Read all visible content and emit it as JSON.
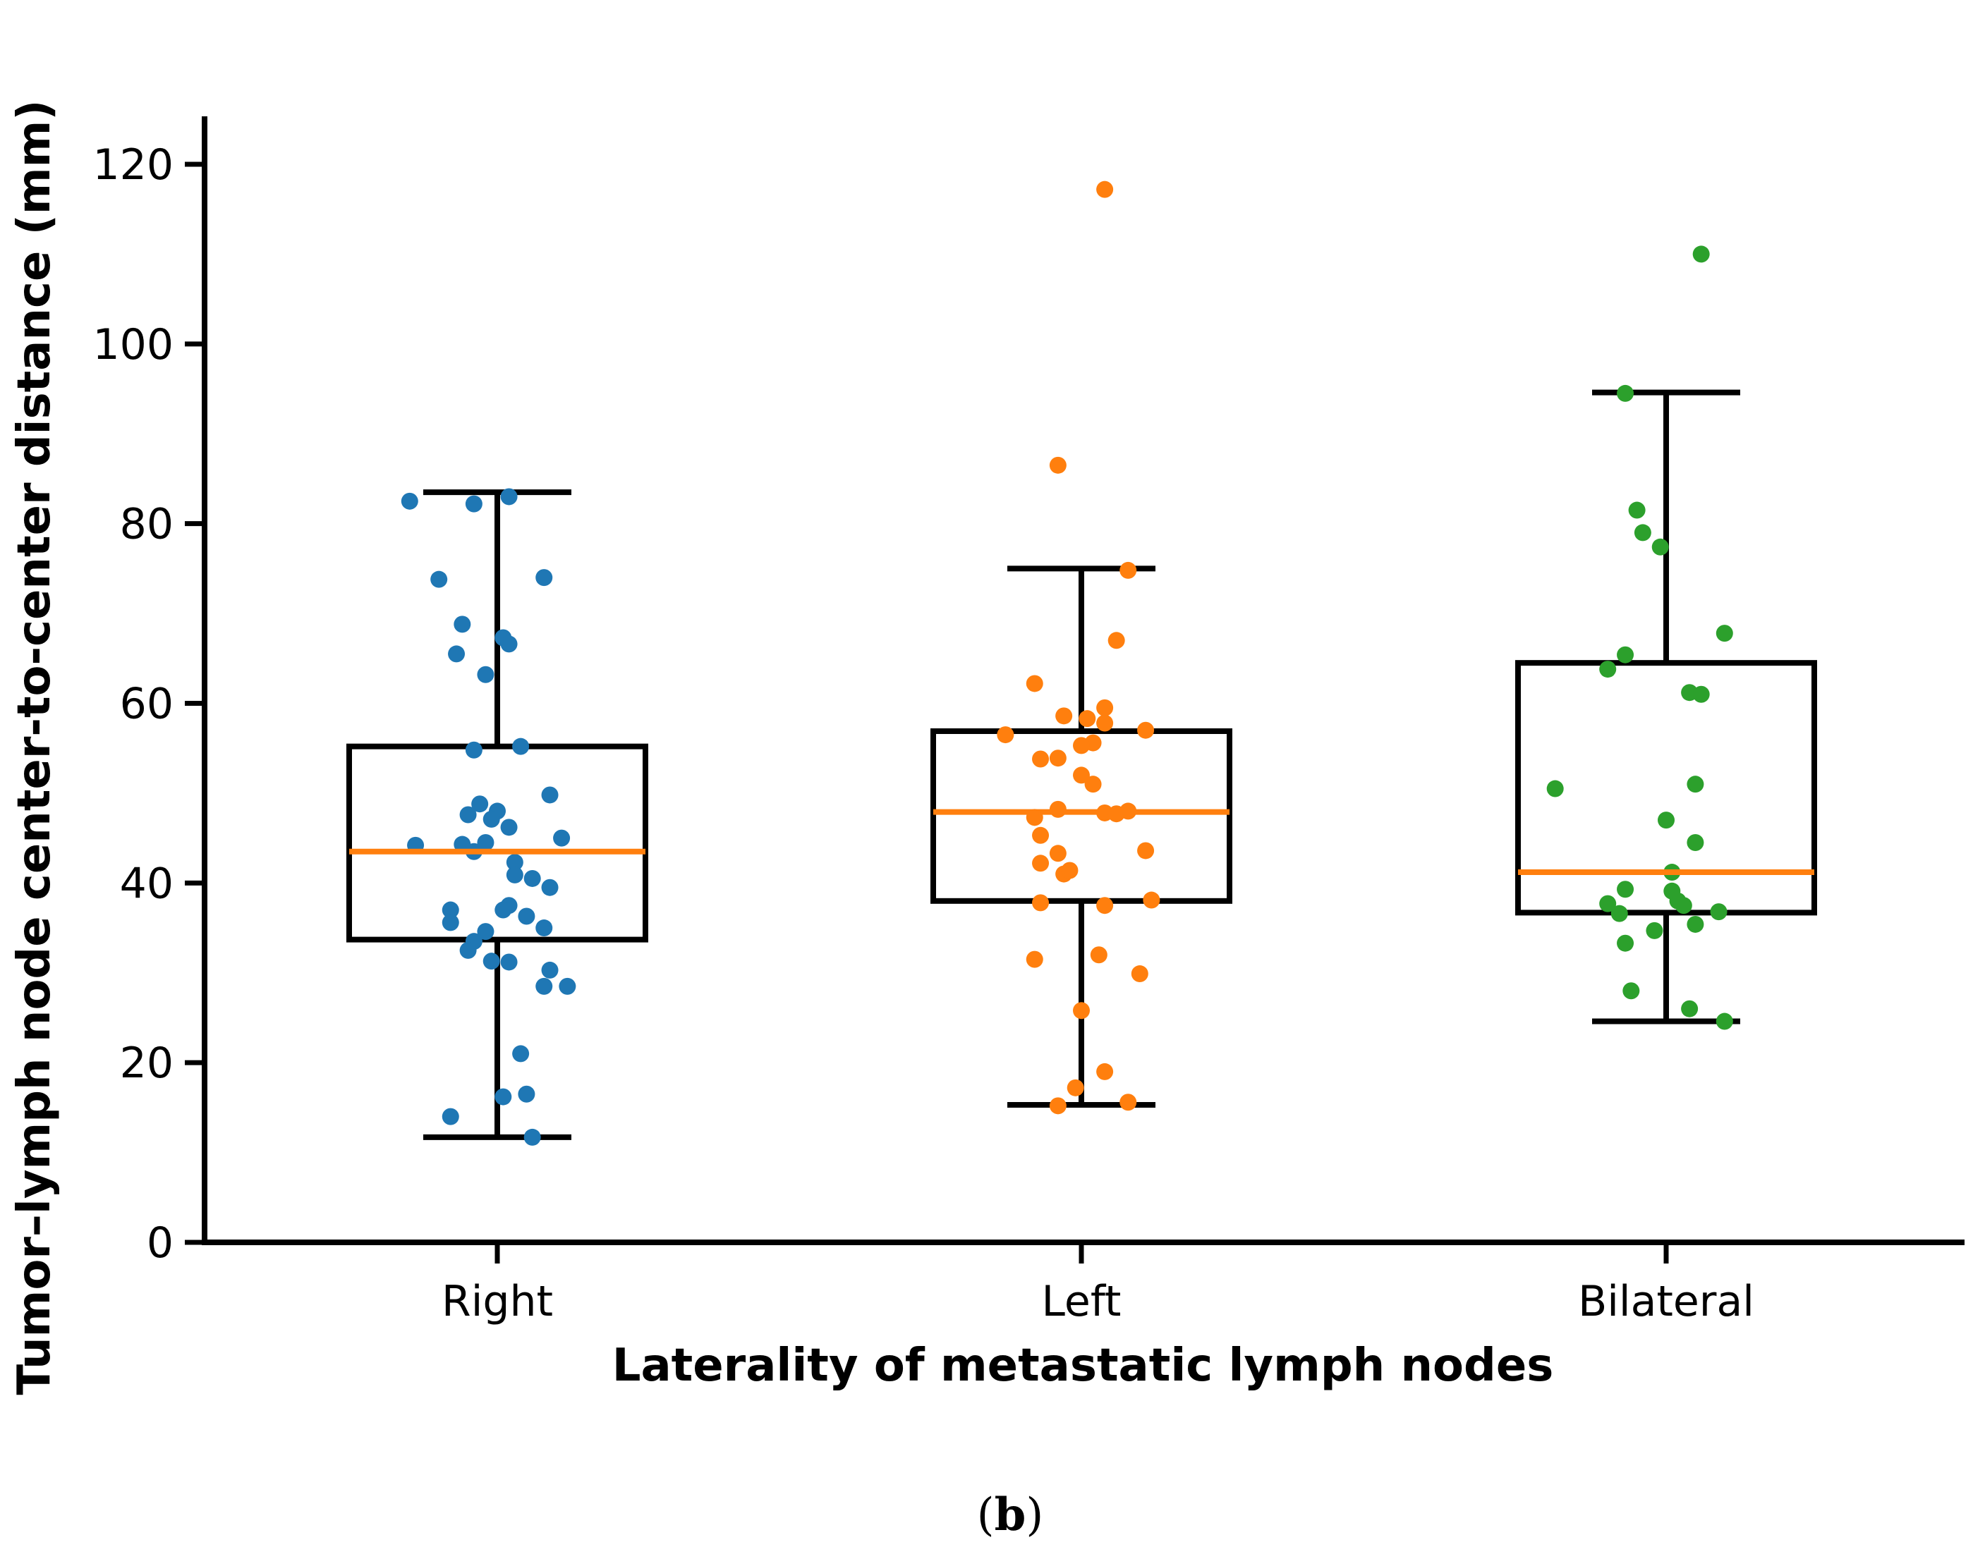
{
  "chart_data": {
    "type": "box",
    "xlabel": "Laterality of metastatic lymph nodes",
    "ylabel": "Tumor–lymph node center-to-center distance (mm)",
    "ylim": [
      0,
      125
    ],
    "yticks": [
      0,
      20,
      40,
      60,
      80,
      100,
      120
    ],
    "categories": [
      "Right",
      "Left",
      "Bilateral"
    ],
    "median_color": "#ff7f0e",
    "box_color": "#000000",
    "series": [
      {
        "category": "Right",
        "color": "#1f77b4",
        "whisker_low": 11.7,
        "q1": 33.7,
        "median": 43.5,
        "q3": 55.2,
        "whisker_high": 83.5,
        "points": [
          {
            "dx": -0.15,
            "y": 82.5
          },
          {
            "dx": 0.02,
            "y": 83.0
          },
          {
            "dx": -0.04,
            "y": 82.2
          },
          {
            "dx": -0.1,
            "y": 73.8
          },
          {
            "dx": 0.08,
            "y": 74.0
          },
          {
            "dx": -0.06,
            "y": 68.8
          },
          {
            "dx": 0.01,
            "y": 67.3
          },
          {
            "dx": -0.07,
            "y": 65.5
          },
          {
            "dx": 0.02,
            "y": 66.6
          },
          {
            "dx": -0.02,
            "y": 63.2
          },
          {
            "dx": 0.04,
            "y": 55.2
          },
          {
            "dx": -0.04,
            "y": 54.8
          },
          {
            "dx": 0.09,
            "y": 49.8
          },
          {
            "dx": -0.03,
            "y": 48.8
          },
          {
            "dx": 0.0,
            "y": 48.0
          },
          {
            "dx": -0.05,
            "y": 47.6
          },
          {
            "dx": -0.01,
            "y": 47.1
          },
          {
            "dx": 0.02,
            "y": 46.2
          },
          {
            "dx": 0.11,
            "y": 45.0
          },
          {
            "dx": -0.14,
            "y": 44.2
          },
          {
            "dx": -0.06,
            "y": 44.3
          },
          {
            "dx": -0.02,
            "y": 44.5
          },
          {
            "dx": -0.04,
            "y": 43.5
          },
          {
            "dx": 0.03,
            "y": 42.3
          },
          {
            "dx": 0.03,
            "y": 40.9
          },
          {
            "dx": 0.06,
            "y": 40.5
          },
          {
            "dx": 0.09,
            "y": 39.5
          },
          {
            "dx": 0.02,
            "y": 37.5
          },
          {
            "dx": -0.08,
            "y": 37.0
          },
          {
            "dx": 0.01,
            "y": 37.0
          },
          {
            "dx": 0.05,
            "y": 36.3
          },
          {
            "dx": -0.08,
            "y": 35.6
          },
          {
            "dx": 0.08,
            "y": 35.0
          },
          {
            "dx": -0.02,
            "y": 34.6
          },
          {
            "dx": -0.04,
            "y": 33.5
          },
          {
            "dx": -0.05,
            "y": 32.5
          },
          {
            "dx": -0.01,
            "y": 31.3
          },
          {
            "dx": 0.02,
            "y": 31.2
          },
          {
            "dx": 0.09,
            "y": 30.3
          },
          {
            "dx": 0.08,
            "y": 28.5
          },
          {
            "dx": 0.12,
            "y": 28.5
          },
          {
            "dx": 0.04,
            "y": 21.0
          },
          {
            "dx": 0.05,
            "y": 16.5
          },
          {
            "dx": 0.01,
            "y": 16.2
          },
          {
            "dx": -0.08,
            "y": 14.0
          },
          {
            "dx": 0.06,
            "y": 11.7
          }
        ]
      },
      {
        "category": "Left",
        "color": "#ff7f0e",
        "whisker_low": 15.3,
        "q1": 38.0,
        "median": 47.9,
        "q3": 56.9,
        "whisker_high": 75.0,
        "points": [
          {
            "dx": 0.04,
            "y": 117.2
          },
          {
            "dx": -0.04,
            "y": 86.5
          },
          {
            "dx": 0.08,
            "y": 74.8
          },
          {
            "dx": 0.06,
            "y": 67.0
          },
          {
            "dx": -0.08,
            "y": 62.2
          },
          {
            "dx": 0.04,
            "y": 59.5
          },
          {
            "dx": -0.03,
            "y": 58.6
          },
          {
            "dx": 0.01,
            "y": 58.3
          },
          {
            "dx": 0.04,
            "y": 57.8
          },
          {
            "dx": 0.11,
            "y": 57.0
          },
          {
            "dx": -0.13,
            "y": 56.5
          },
          {
            "dx": 0.02,
            "y": 55.6
          },
          {
            "dx": 0.0,
            "y": 55.3
          },
          {
            "dx": -0.07,
            "y": 53.8
          },
          {
            "dx": -0.04,
            "y": 53.9
          },
          {
            "dx": 0.0,
            "y": 52.0
          },
          {
            "dx": 0.02,
            "y": 51.0
          },
          {
            "dx": -0.04,
            "y": 48.2
          },
          {
            "dx": 0.04,
            "y": 47.8
          },
          {
            "dx": 0.06,
            "y": 47.7
          },
          {
            "dx": 0.08,
            "y": 48.0
          },
          {
            "dx": -0.08,
            "y": 47.3
          },
          {
            "dx": -0.07,
            "y": 45.3
          },
          {
            "dx": 0.11,
            "y": 43.6
          },
          {
            "dx": -0.04,
            "y": 43.3
          },
          {
            "dx": -0.07,
            "y": 42.2
          },
          {
            "dx": -0.03,
            "y": 41.0
          },
          {
            "dx": -0.02,
            "y": 41.4
          },
          {
            "dx": 0.12,
            "y": 38.1
          },
          {
            "dx": -0.07,
            "y": 37.8
          },
          {
            "dx": 0.04,
            "y": 37.5
          },
          {
            "dx": -0.08,
            "y": 31.5
          },
          {
            "dx": 0.03,
            "y": 32.0
          },
          {
            "dx": 0.1,
            "y": 29.9
          },
          {
            "dx": 0.0,
            "y": 25.8
          },
          {
            "dx": 0.04,
            "y": 19.0
          },
          {
            "dx": -0.01,
            "y": 17.2
          },
          {
            "dx": -0.04,
            "y": 15.2
          },
          {
            "dx": 0.08,
            "y": 15.6
          }
        ]
      },
      {
        "category": "Bilateral",
        "color": "#2ca02c",
        "whisker_low": 24.6,
        "q1": 36.7,
        "median": 41.2,
        "q3": 64.5,
        "whisker_high": 94.6,
        "points": [
          {
            "dx": 0.06,
            "y": 110.0
          },
          {
            "dx": -0.07,
            "y": 94.5
          },
          {
            "dx": -0.05,
            "y": 81.5
          },
          {
            "dx": -0.04,
            "y": 79.0
          },
          {
            "dx": -0.01,
            "y": 77.4
          },
          {
            "dx": 0.1,
            "y": 67.8
          },
          {
            "dx": -0.07,
            "y": 65.4
          },
          {
            "dx": -0.1,
            "y": 63.8
          },
          {
            "dx": 0.04,
            "y": 61.2
          },
          {
            "dx": 0.06,
            "y": 61.0
          },
          {
            "dx": 0.05,
            "y": 51.0
          },
          {
            "dx": -0.19,
            "y": 50.5
          },
          {
            "dx": 0.0,
            "y": 47.0
          },
          {
            "dx": 0.05,
            "y": 44.5
          },
          {
            "dx": 0.01,
            "y": 41.2
          },
          {
            "dx": -0.07,
            "y": 39.3
          },
          {
            "dx": 0.01,
            "y": 39.1
          },
          {
            "dx": -0.1,
            "y": 37.7
          },
          {
            "dx": 0.02,
            "y": 38.0
          },
          {
            "dx": 0.03,
            "y": 37.5
          },
          {
            "dx": -0.08,
            "y": 36.6
          },
          {
            "dx": 0.09,
            "y": 36.8
          },
          {
            "dx": 0.05,
            "y": 35.4
          },
          {
            "dx": -0.02,
            "y": 34.7
          },
          {
            "dx": -0.07,
            "y": 33.3
          },
          {
            "dx": -0.06,
            "y": 28.0
          },
          {
            "dx": 0.04,
            "y": 26.0
          },
          {
            "dx": 0.1,
            "y": 24.6
          }
        ]
      }
    ]
  },
  "caption": {
    "open": "(",
    "label": "b",
    "close": ")"
  }
}
